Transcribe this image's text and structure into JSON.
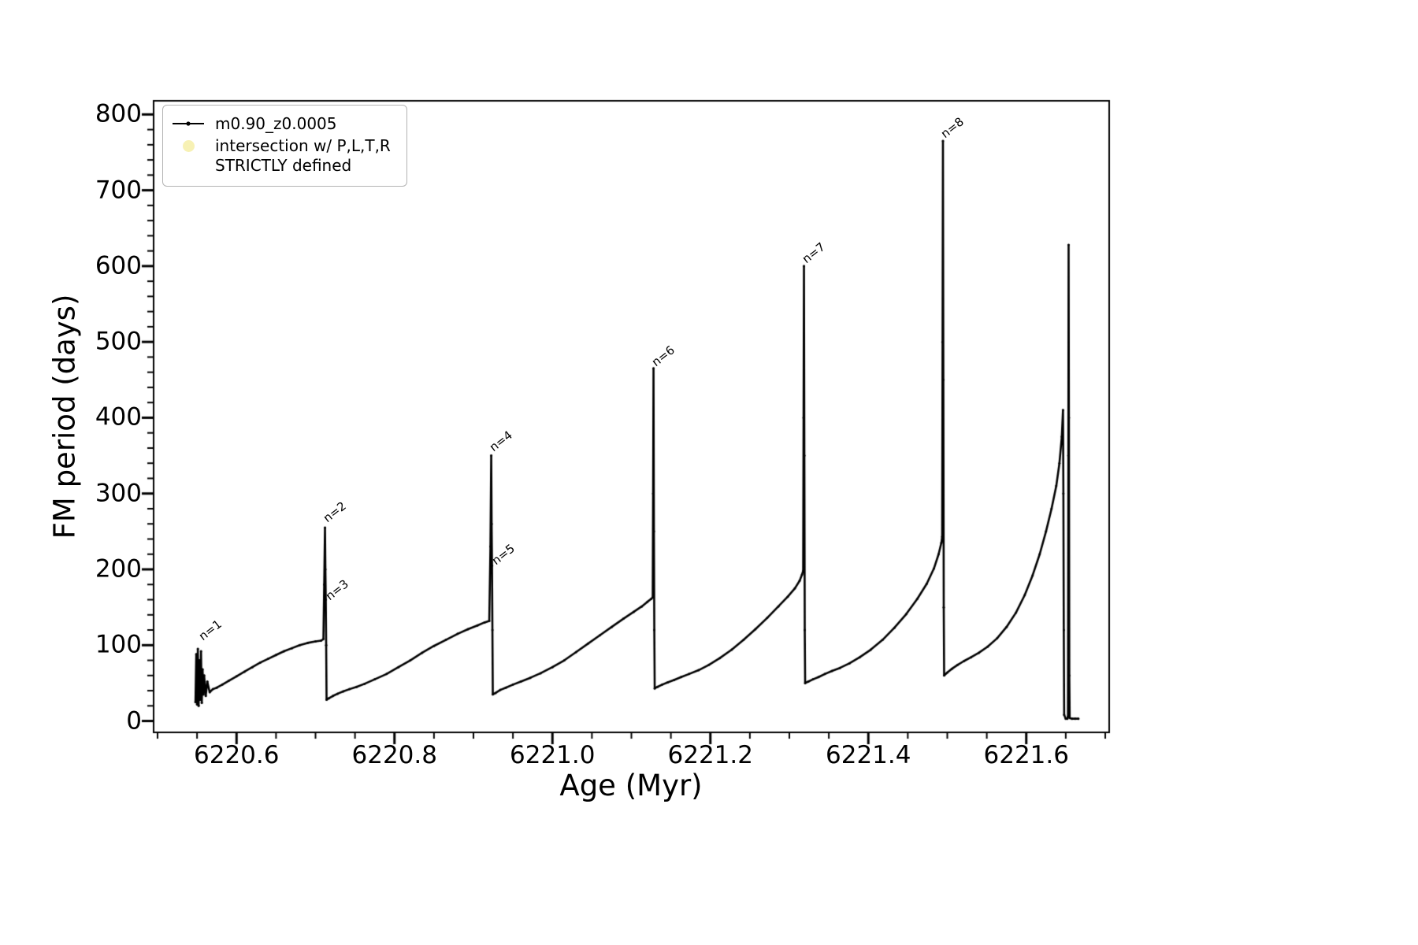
{
  "chart_data": {
    "type": "line",
    "title": "",
    "xlabel": "Age (Myr)",
    "ylabel": "FM period (days)",
    "background": "#ffffff",
    "axis_color": "#000000",
    "xlim": [
      6220.495,
      6221.705
    ],
    "ylim": [
      -15,
      818
    ],
    "x_major_ticks": [
      6220.6,
      6220.8,
      6221.0,
      6221.2,
      6221.4,
      6221.6
    ],
    "x_tick_labels": [
      "6220.6",
      "6220.8",
      "6221.0",
      "6221.2",
      "6221.4",
      "6221.6"
    ],
    "x_minor_step": 0.05,
    "y_major_ticks": [
      0,
      100,
      200,
      300,
      400,
      500,
      600,
      700,
      800
    ],
    "y_tick_labels": [
      "0",
      "100",
      "200",
      "300",
      "400",
      "500",
      "600",
      "700",
      "800"
    ],
    "y_minor_step": 20,
    "grid": false,
    "legend": {
      "position": "upper-left",
      "entries": [
        {
          "label": "m0.90_z0.0005",
          "marker": "line-dot",
          "color": "#000000"
        },
        {
          "label": "intersection w/ P,L,T,R STRICTLY defined",
          "label_lines": [
            "intersection w/ P,L,T,R",
            "STRICTLY defined"
          ],
          "marker": "circle",
          "color": "#f7f1b4"
        }
      ]
    },
    "annotations": [
      {
        "label": "n=1",
        "x": 6220.5565,
        "y": 100
      },
      {
        "label": "n=2",
        "x": 6220.714,
        "y": 256
      },
      {
        "label": "n=3",
        "x": 6220.717,
        "y": 153
      },
      {
        "label": "n=4",
        "x": 6220.925,
        "y": 350
      },
      {
        "label": "n=5",
        "x": 6220.928,
        "y": 200
      },
      {
        "label": "n=6",
        "x": 6221.13,
        "y": 462
      },
      {
        "label": "n=7",
        "x": 6221.321,
        "y": 598
      },
      {
        "label": "n=8",
        "x": 6221.497,
        "y": 763
      }
    ],
    "series": [
      {
        "name": "m0.90_z0.0005",
        "color": "#000000",
        "points": [
          [
            6220.548,
            25
          ],
          [
            6220.549,
            88
          ],
          [
            6220.55,
            22
          ],
          [
            6220.551,
            95
          ],
          [
            6220.552,
            20
          ],
          [
            6220.553,
            80
          ],
          [
            6220.554,
            28
          ],
          [
            6220.555,
            92
          ],
          [
            6220.556,
            24
          ],
          [
            6220.557,
            68
          ],
          [
            6220.558,
            35
          ],
          [
            6220.559,
            60
          ],
          [
            6220.561,
            33
          ],
          [
            6220.563,
            52
          ],
          [
            6220.566,
            38
          ],
          [
            6220.57,
            42
          ],
          [
            6220.575,
            44
          ],
          [
            6220.582,
            48
          ],
          [
            6220.59,
            53
          ],
          [
            6220.6,
            59
          ],
          [
            6220.61,
            65
          ],
          [
            6220.62,
            71
          ],
          [
            6220.63,
            77
          ],
          [
            6220.64,
            82
          ],
          [
            6220.65,
            87
          ],
          [
            6220.66,
            92
          ],
          [
            6220.67,
            96
          ],
          [
            6220.68,
            100
          ],
          [
            6220.69,
            103
          ],
          [
            6220.7,
            105
          ],
          [
            6220.707,
            106
          ],
          [
            6220.71,
            108
          ],
          [
            6220.711,
            180
          ],
          [
            6220.712,
            255
          ],
          [
            6220.7125,
            200
          ],
          [
            6220.713,
            160
          ],
          [
            6220.7135,
            100
          ],
          [
            6220.714,
            28
          ],
          [
            6220.717,
            30
          ],
          [
            6220.722,
            33
          ],
          [
            6220.728,
            36
          ],
          [
            6220.735,
            39
          ],
          [
            6220.743,
            42
          ],
          [
            6220.752,
            45
          ],
          [
            6220.762,
            49
          ],
          [
            6220.775,
            55
          ],
          [
            6220.79,
            62
          ],
          [
            6220.805,
            71
          ],
          [
            6220.82,
            80
          ],
          [
            6220.835,
            90
          ],
          [
            6220.85,
            99
          ],
          [
            6220.865,
            107
          ],
          [
            6220.88,
            115
          ],
          [
            6220.893,
            121
          ],
          [
            6220.905,
            126
          ],
          [
            6220.914,
            130
          ],
          [
            6220.92,
            132
          ],
          [
            6220.9215,
            230
          ],
          [
            6220.9225,
            350
          ],
          [
            6220.923,
            260
          ],
          [
            6220.9235,
            205
          ],
          [
            6220.924,
            120
          ],
          [
            6220.9245,
            35
          ],
          [
            6220.928,
            37
          ],
          [
            6220.934,
            41
          ],
          [
            6220.941,
            44
          ],
          [
            6220.95,
            48
          ],
          [
            6220.96,
            52
          ],
          [
            6220.972,
            57
          ],
          [
            6220.985,
            63
          ],
          [
            6221.0,
            71
          ],
          [
            6221.015,
            80
          ],
          [
            6221.03,
            91
          ],
          [
            6221.045,
            102
          ],
          [
            6221.06,
            113
          ],
          [
            6221.075,
            124
          ],
          [
            6221.09,
            135
          ],
          [
            6221.103,
            144
          ],
          [
            6221.113,
            151
          ],
          [
            6221.12,
            157
          ],
          [
            6221.125,
            161
          ],
          [
            6221.127,
            163
          ],
          [
            6221.1275,
            300
          ],
          [
            6221.128,
            465
          ],
          [
            6221.1285,
            250
          ],
          [
            6221.129,
            120
          ],
          [
            6221.1295,
            43
          ],
          [
            6221.133,
            45
          ],
          [
            6221.139,
            48
          ],
          [
            6221.146,
            51
          ],
          [
            6221.154,
            54
          ],
          [
            6221.163,
            58
          ],
          [
            6221.173,
            62
          ],
          [
            6221.185,
            67
          ],
          [
            6221.198,
            74
          ],
          [
            6221.212,
            83
          ],
          [
            6221.227,
            94
          ],
          [
            6221.242,
            107
          ],
          [
            6221.257,
            121
          ],
          [
            6221.272,
            136
          ],
          [
            6221.286,
            151
          ],
          [
            6221.298,
            164
          ],
          [
            6221.307,
            175
          ],
          [
            6221.313,
            185
          ],
          [
            6221.316,
            193
          ],
          [
            6221.3175,
            198
          ],
          [
            6221.318,
            400
          ],
          [
            6221.3185,
            600
          ],
          [
            6221.319,
            350
          ],
          [
            6221.3195,
            120
          ],
          [
            6221.32,
            50
          ],
          [
            6221.324,
            52
          ],
          [
            6221.33,
            55
          ],
          [
            6221.337,
            58
          ],
          [
            6221.345,
            62
          ],
          [
            6221.354,
            66
          ],
          [
            6221.364,
            70
          ],
          [
            6221.376,
            76
          ],
          [
            6221.389,
            84
          ],
          [
            6221.403,
            94
          ],
          [
            6221.418,
            107
          ],
          [
            6221.433,
            123
          ],
          [
            6221.448,
            141
          ],
          [
            6221.462,
            161
          ],
          [
            6221.474,
            181
          ],
          [
            6221.483,
            201
          ],
          [
            6221.489,
            220
          ],
          [
            6221.4925,
            235
          ],
          [
            6221.4935,
            243
          ],
          [
            6221.494,
            500
          ],
          [
            6221.4945,
            765
          ],
          [
            6221.495,
            450
          ],
          [
            6221.4955,
            150
          ],
          [
            6221.496,
            60
          ],
          [
            6221.5,
            64
          ],
          [
            6221.506,
            69
          ],
          [
            6221.513,
            74
          ],
          [
            6221.521,
            79
          ],
          [
            6221.53,
            84
          ],
          [
            6221.54,
            90
          ],
          [
            6221.551,
            98
          ],
          [
            6221.563,
            109
          ],
          [
            6221.575,
            124
          ],
          [
            6221.587,
            143
          ],
          [
            6221.598,
            166
          ],
          [
            6221.608,
            192
          ],
          [
            6221.617,
            220
          ],
          [
            6221.625,
            250
          ],
          [
            6221.632,
            280
          ],
          [
            6221.638,
            310
          ],
          [
            6221.642,
            340
          ],
          [
            6221.645,
            375
          ],
          [
            6221.6465,
            410
          ],
          [
            6221.647,
            300
          ],
          [
            6221.6475,
            120
          ],
          [
            6221.648,
            8
          ],
          [
            6221.65,
            3
          ],
          [
            6221.652,
            3
          ],
          [
            6221.6528,
            6
          ],
          [
            6221.6533,
            350
          ],
          [
            6221.6536,
            628
          ],
          [
            6221.654,
            400
          ],
          [
            6221.6545,
            60
          ],
          [
            6221.655,
            4
          ],
          [
            6221.658,
            3
          ],
          [
            6221.662,
            3
          ],
          [
            6221.666,
            3
          ]
        ]
      }
    ]
  }
}
